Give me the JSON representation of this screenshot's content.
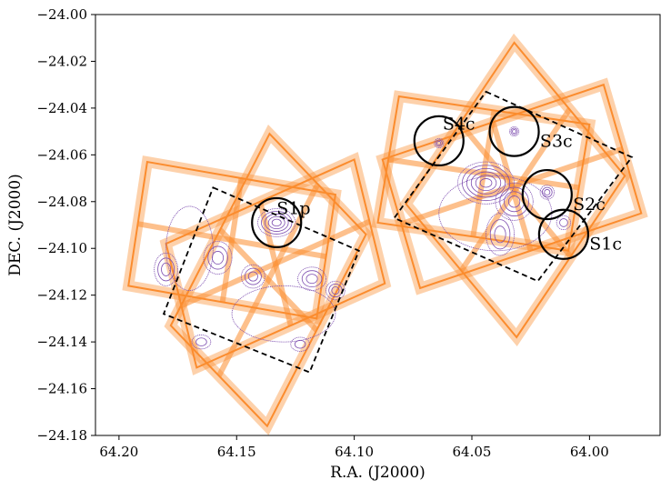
{
  "chart_data": {
    "type": "scatter",
    "title": "",
    "xlabel": "R.A. (J2000)",
    "ylabel": "DEC. (J2000)",
    "xlim": [
      64.21,
      63.97
    ],
    "ylim": [
      -24.18,
      -24.0
    ],
    "x_ticks": [
      64.2,
      64.15,
      64.1,
      64.05,
      64.0
    ],
    "x_tick_labels": [
      "64.20",
      "64.15",
      "64.10",
      "64.05",
      "64.00"
    ],
    "y_ticks": [
      -24.18,
      -24.16,
      -24.14,
      -24.12,
      -24.1,
      -24.08,
      -24.06,
      -24.04,
      -24.02,
      -24.0
    ],
    "y_tick_labels": [
      "−24.18",
      "−24.16",
      "−24.14",
      "−24.12",
      "−24.10",
      "−24.08",
      "−24.06",
      "−24.04",
      "−24.02",
      "−24.00"
    ],
    "grid": false,
    "sources": [
      {
        "name": "S1p",
        "ra": 64.133,
        "dec": -24.089
      },
      {
        "name": "S4c",
        "ra": 64.064,
        "dec": -24.054
      },
      {
        "name": "S3c",
        "ra": 64.032,
        "dec": -24.05
      },
      {
        "name": "S2c",
        "ra": 64.018,
        "dec": -24.077
      },
      {
        "name": "S1c",
        "ra": 64.011,
        "dec": -24.094
      }
    ],
    "dashed_regions": [
      {
        "corners": [
          [
            64.16,
            -24.074
          ],
          [
            64.098,
            -24.101
          ],
          [
            64.119,
            -24.153
          ],
          [
            64.181,
            -24.128
          ]
        ]
      },
      {
        "corners": [
          [
            64.044,
            -24.033
          ],
          [
            63.982,
            -24.061
          ],
          [
            64.022,
            -24.114
          ],
          [
            64.083,
            -24.087
          ]
        ]
      }
    ],
    "pointing_frames": [
      {
        "color": "#fb8c2e",
        "corners": [
          [
            64.188,
            -24.063
          ],
          [
            64.108,
            -24.077
          ],
          [
            64.116,
            -24.13
          ],
          [
            64.196,
            -24.116
          ]
        ]
      },
      {
        "color": "#fb8c2e",
        "corners": [
          [
            64.136,
            -24.051
          ],
          [
            64.095,
            -24.094
          ],
          [
            64.137,
            -24.176
          ],
          [
            64.178,
            -24.133
          ]
        ]
      },
      {
        "color": "#fb8c2e",
        "corners": [
          [
            64.1,
            -24.062
          ],
          [
            64.087,
            -24.115
          ],
          [
            64.167,
            -24.151
          ],
          [
            64.18,
            -24.098
          ]
        ]
      },
      {
        "color": "#fb8c2e",
        "corners": [
          [
            64.081,
            -24.035
          ],
          [
            64.0,
            -24.047
          ],
          [
            64.009,
            -24.101
          ],
          [
            64.09,
            -24.089
          ]
        ]
      },
      {
        "color": "#fb8c2e",
        "corners": [
          [
            64.032,
            -24.012
          ],
          [
            63.985,
            -24.069
          ],
          [
            64.031,
            -24.138
          ],
          [
            64.078,
            -24.081
          ]
        ]
      },
      {
        "color": "#fb8c2e",
        "corners": [
          [
            63.994,
            -24.03
          ],
          [
            63.978,
            -24.085
          ],
          [
            64.072,
            -24.117
          ],
          [
            64.088,
            -24.062
          ]
        ]
      }
    ],
    "contour_sets": [
      {
        "center": [
          64.133,
          -24.089
        ],
        "rx": 0.008,
        "ry": 0.006,
        "levels": 5
      },
      {
        "center": [
          64.158,
          -24.104
        ],
        "rx": 0.006,
        "ry": 0.007,
        "levels": 3
      },
      {
        "center": [
          64.18,
          -24.109
        ],
        "rx": 0.005,
        "ry": 0.007,
        "levels": 3
      },
      {
        "center": [
          64.143,
          -24.112
        ],
        "rx": 0.005,
        "ry": 0.005,
        "levels": 3
      },
      {
        "center": [
          64.118,
          -24.113
        ],
        "rx": 0.006,
        "ry": 0.005,
        "levels": 3
      },
      {
        "center": [
          64.108,
          -24.118
        ],
        "rx": 0.004,
        "ry": 0.004,
        "levels": 3
      },
      {
        "center": [
          64.165,
          -24.14
        ],
        "rx": 0.004,
        "ry": 0.003,
        "levels": 2
      },
      {
        "center": [
          64.123,
          -24.141
        ],
        "rx": 0.004,
        "ry": 0.003,
        "levels": 2
      },
      {
        "center": [
          64.13,
          -24.128
        ],
        "rx": 0.022,
        "ry": 0.012,
        "levels": 1
      },
      {
        "center": [
          64.17,
          -24.1
        ],
        "rx": 0.01,
        "ry": 0.018,
        "levels": 1
      },
      {
        "center": [
          64.044,
          -24.072
        ],
        "rx": 0.012,
        "ry": 0.009,
        "levels": 6
      },
      {
        "center": [
          64.032,
          -24.08
        ],
        "rx": 0.008,
        "ry": 0.008,
        "levels": 4
      },
      {
        "center": [
          64.038,
          -24.094
        ],
        "rx": 0.006,
        "ry": 0.009,
        "levels": 3
      },
      {
        "center": [
          64.032,
          -24.05
        ],
        "rx": 0.002,
        "ry": 0.002,
        "levels": 3
      },
      {
        "center": [
          64.018,
          -24.076
        ],
        "rx": 0.003,
        "ry": 0.003,
        "levels": 3
      },
      {
        "center": [
          64.064,
          -24.055
        ],
        "rx": 0.002,
        "ry": 0.002,
        "levels": 3
      },
      {
        "center": [
          64.011,
          -24.089
        ],
        "rx": 0.003,
        "ry": 0.003,
        "levels": 2
      },
      {
        "center": [
          64.04,
          -24.085
        ],
        "rx": 0.024,
        "ry": 0.016,
        "levels": 1
      }
    ]
  }
}
